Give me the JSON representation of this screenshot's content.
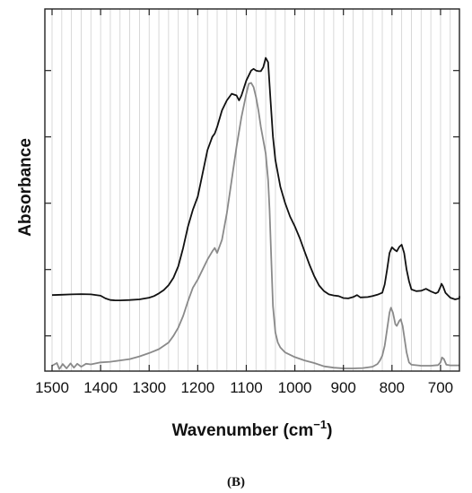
{
  "chart_data": {
    "type": "line",
    "panel_label": "(B)",
    "xlabel": "Wavenumber (cm",
    "xlabel_sup": "−1",
    "xlabel_suffix": ")",
    "ylabel": "Absorbance",
    "xlim": [
      1500,
      650
    ],
    "x_reversed": true,
    "ylim": [
      0,
      1
    ],
    "xticks": [
      1500,
      1400,
      1300,
      1200,
      1100,
      1000,
      900,
      800,
      700
    ],
    "xtick_labels": [
      "1500",
      "1400",
      "1300",
      "1200",
      "1100",
      "1000",
      "900",
      "800",
      "700"
    ],
    "x_minor_step": 20,
    "y_major_ticks": [
      0.09,
      0.29,
      0.49,
      0.69,
      0.89
    ],
    "y_tick_labels_shown": false,
    "grid": "vertical",
    "legend": "none",
    "series": [
      {
        "color": "#111111",
        "points": [
          [
            1500,
            0.213
          ],
          [
            1480,
            0.214
          ],
          [
            1460,
            0.215
          ],
          [
            1440,
            0.216
          ],
          [
            1420,
            0.215
          ],
          [
            1400,
            0.211
          ],
          [
            1390,
            0.203
          ],
          [
            1380,
            0.198
          ],
          [
            1370,
            0.197
          ],
          [
            1360,
            0.197
          ],
          [
            1340,
            0.198
          ],
          [
            1320,
            0.2
          ],
          [
            1300,
            0.205
          ],
          [
            1290,
            0.21
          ],
          [
            1280,
            0.218
          ],
          [
            1270,
            0.228
          ],
          [
            1260,
            0.243
          ],
          [
            1250,
            0.265
          ],
          [
            1240,
            0.3
          ],
          [
            1230,
            0.355
          ],
          [
            1220,
            0.42
          ],
          [
            1210,
            0.47
          ],
          [
            1200,
            0.51
          ],
          [
            1190,
            0.58
          ],
          [
            1180,
            0.65
          ],
          [
            1170,
            0.69
          ],
          [
            1165,
            0.7
          ],
          [
            1160,
            0.72
          ],
          [
            1150,
            0.77
          ],
          [
            1140,
            0.8
          ],
          [
            1130,
            0.82
          ],
          [
            1120,
            0.815
          ],
          [
            1115,
            0.8
          ],
          [
            1110,
            0.815
          ],
          [
            1100,
            0.86
          ],
          [
            1090,
            0.89
          ],
          [
            1085,
            0.895
          ],
          [
            1080,
            0.89
          ],
          [
            1075,
            0.888
          ],
          [
            1070,
            0.888
          ],
          [
            1065,
            0.9
          ],
          [
            1060,
            0.928
          ],
          [
            1055,
            0.915
          ],
          [
            1050,
            0.8
          ],
          [
            1045,
            0.69
          ],
          [
            1040,
            0.62
          ],
          [
            1030,
            0.54
          ],
          [
            1020,
            0.49
          ],
          [
            1010,
            0.45
          ],
          [
            1000,
            0.42
          ],
          [
            990,
            0.385
          ],
          [
            980,
            0.345
          ],
          [
            970,
            0.305
          ],
          [
            960,
            0.27
          ],
          [
            950,
            0.242
          ],
          [
            940,
            0.225
          ],
          [
            930,
            0.215
          ],
          [
            920,
            0.212
          ],
          [
            910,
            0.21
          ],
          [
            900,
            0.204
          ],
          [
            890,
            0.203
          ],
          [
            880,
            0.207
          ],
          [
            872,
            0.213
          ],
          [
            865,
            0.206
          ],
          [
            850,
            0.207
          ],
          [
            840,
            0.21
          ],
          [
            830,
            0.214
          ],
          [
            820,
            0.22
          ],
          [
            815,
            0.245
          ],
          [
            810,
            0.29
          ],
          [
            805,
            0.34
          ],
          [
            800,
            0.357
          ],
          [
            795,
            0.35
          ],
          [
            790,
            0.345
          ],
          [
            785,
            0.358
          ],
          [
            780,
            0.365
          ],
          [
            775,
            0.34
          ],
          [
            770,
            0.29
          ],
          [
            765,
            0.255
          ],
          [
            760,
            0.23
          ],
          [
            750,
            0.225
          ],
          [
            740,
            0.226
          ],
          [
            730,
            0.232
          ],
          [
            720,
            0.224
          ],
          [
            710,
            0.218
          ],
          [
            705,
            0.222
          ],
          [
            700,
            0.238
          ],
          [
            698,
            0.247
          ],
          [
            695,
            0.24
          ],
          [
            690,
            0.22
          ],
          [
            680,
            0.205
          ],
          [
            670,
            0.2
          ],
          [
            660,
            0.203
          ],
          [
            650,
            0.21
          ]
        ]
      },
      {
        "color": "#8a8a8a",
        "points": [
          [
            1500,
            0.0
          ],
          [
            1490,
            0.008
          ],
          [
            1485,
            -0.01
          ],
          [
            1478,
            0.005
          ],
          [
            1470,
            -0.008
          ],
          [
            1462,
            0.007
          ],
          [
            1455,
            -0.006
          ],
          [
            1448,
            0.006
          ],
          [
            1440,
            -0.003
          ],
          [
            1430,
            0.006
          ],
          [
            1420,
            0.004
          ],
          [
            1400,
            0.01
          ],
          [
            1380,
            0.012
          ],
          [
            1360,
            0.016
          ],
          [
            1340,
            0.02
          ],
          [
            1320,
            0.028
          ],
          [
            1300,
            0.038
          ],
          [
            1280,
            0.05
          ],
          [
            1260,
            0.07
          ],
          [
            1250,
            0.09
          ],
          [
            1240,
            0.115
          ],
          [
            1230,
            0.15
          ],
          [
            1220,
            0.195
          ],
          [
            1210,
            0.235
          ],
          [
            1200,
            0.26
          ],
          [
            1190,
            0.29
          ],
          [
            1180,
            0.32
          ],
          [
            1170,
            0.345
          ],
          [
            1165,
            0.355
          ],
          [
            1160,
            0.34
          ],
          [
            1150,
            0.38
          ],
          [
            1140,
            0.46
          ],
          [
            1130,
            0.56
          ],
          [
            1120,
            0.66
          ],
          [
            1110,
            0.75
          ],
          [
            1100,
            0.82
          ],
          [
            1095,
            0.85
          ],
          [
            1090,
            0.853
          ],
          [
            1085,
            0.84
          ],
          [
            1080,
            0.81
          ],
          [
            1075,
            0.77
          ],
          [
            1070,
            0.72
          ],
          [
            1065,
            0.68
          ],
          [
            1060,
            0.64
          ],
          [
            1055,
            0.56
          ],
          [
            1052,
            0.47
          ],
          [
            1048,
            0.3
          ],
          [
            1045,
            0.18
          ],
          [
            1040,
            0.1
          ],
          [
            1035,
            0.07
          ],
          [
            1030,
            0.055
          ],
          [
            1020,
            0.04
          ],
          [
            1000,
            0.026
          ],
          [
            980,
            0.016
          ],
          [
            960,
            0.008
          ],
          [
            940,
            -0.002
          ],
          [
            920,
            -0.006
          ],
          [
            900,
            -0.008
          ],
          [
            880,
            -0.008
          ],
          [
            860,
            -0.007
          ],
          [
            840,
            -0.003
          ],
          [
            830,
            0.005
          ],
          [
            825,
            0.015
          ],
          [
            820,
            0.03
          ],
          [
            815,
            0.06
          ],
          [
            810,
            0.11
          ],
          [
            805,
            0.16
          ],
          [
            802,
            0.175
          ],
          [
            798,
            0.16
          ],
          [
            793,
            0.125
          ],
          [
            790,
            0.12
          ],
          [
            785,
            0.135
          ],
          [
            782,
            0.14
          ],
          [
            778,
            0.12
          ],
          [
            774,
            0.08
          ],
          [
            770,
            0.04
          ],
          [
            765,
            0.01
          ],
          [
            760,
            0.003
          ],
          [
            740,
            0.0
          ],
          [
            720,
            0.0
          ],
          [
            705,
            0.002
          ],
          [
            700,
            0.01
          ],
          [
            697,
            0.025
          ],
          [
            693,
            0.02
          ],
          [
            688,
            0.003
          ],
          [
            680,
            0.001
          ],
          [
            660,
            0.001
          ],
          [
            650,
            0.001
          ]
        ]
      }
    ]
  }
}
